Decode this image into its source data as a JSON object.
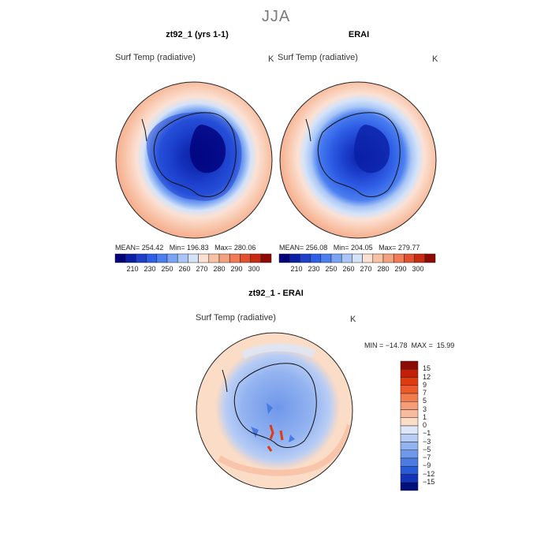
{
  "season": "JJA",
  "panels": {
    "model": {
      "title": "zt92_1 (yrs 1-1)",
      "variable": "Surf Temp (radiative)",
      "unit": "K",
      "stats": "MEAN= 254.42   Min= 196.83   Max= 280.06"
    },
    "obs": {
      "title": "ERAI",
      "variable": "Surf Temp (radiative)",
      "unit": "K",
      "stats": "MEAN= 256.08   Min= 204.05   Max= 279.77"
    },
    "diff": {
      "title": "zt92_1 - ERAI",
      "variable": "Surf Temp (radiative)",
      "unit": "K",
      "stats": "MIN = −14.78  MAX =  15.99"
    }
  },
  "abs_colorbar": {
    "tick_labels": [
      "210",
      "230",
      "250",
      "260",
      "270",
      "280",
      "290",
      "300"
    ],
    "colors": [
      "#00007a",
      "#0a1fa6",
      "#1c3fcc",
      "#2f5ee6",
      "#4b7ff0",
      "#7aa4f3",
      "#a9c6f6",
      "#d4e3f9",
      "#fbe1d4",
      "#f8c2a6",
      "#f4a17f",
      "#ef7b57",
      "#e3502f",
      "#c82a12",
      "#8c0b05"
    ]
  },
  "diff_colorbar": {
    "tick_labels": [
      "15",
      "12",
      "9",
      "7",
      "5",
      "3",
      "1",
      "0",
      "−1",
      "−3",
      "−5",
      "−7",
      "−9",
      "−12",
      "−15"
    ],
    "colors": [
      "#8c0b05",
      "#c41e08",
      "#e13a10",
      "#ef5a2a",
      "#f37c4e",
      "#f69c76",
      "#f8bb9e",
      "#fbdcc6",
      "#dde7f8",
      "#b8cdf5",
      "#93b3f0",
      "#6f97ea",
      "#4a7ae2",
      "#2a5bd6",
      "#1533b8",
      "#00107a"
    ]
  }
}
